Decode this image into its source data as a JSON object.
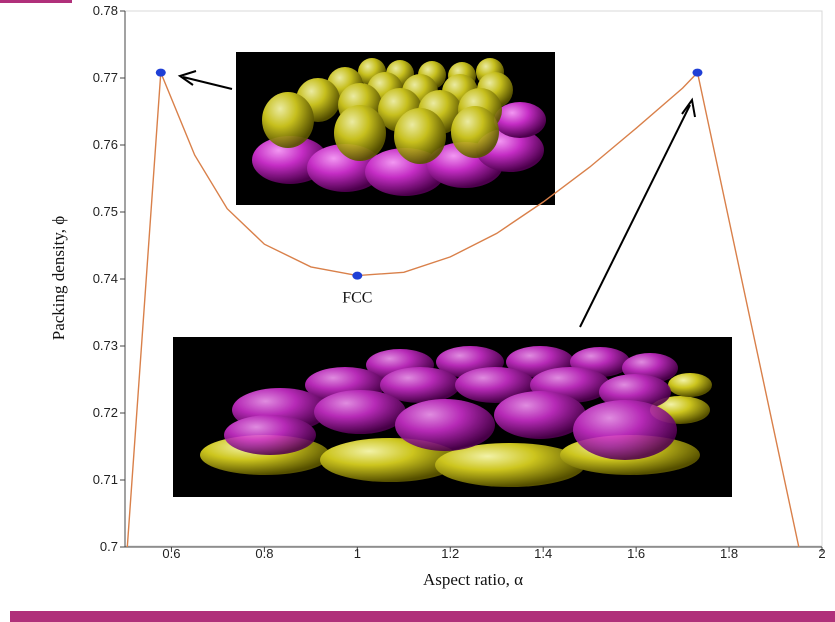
{
  "chart_data": {
    "type": "line",
    "title": "",
    "xlabel": "Aspect ratio, α",
    "ylabel": "Packing density, ϕ",
    "xlim": [
      0.5,
      2.0
    ],
    "ylim": [
      0.7,
      0.78
    ],
    "xticks": [
      "0.6",
      "0.8",
      "1",
      "1.2",
      "1.4",
      "1.6",
      "1.8",
      "2"
    ],
    "yticks": [
      "0.7",
      "0.71",
      "0.72",
      "0.73",
      "0.74",
      "0.75",
      "0.76",
      "0.77",
      "0.78"
    ],
    "grid": false,
    "series": [
      {
        "color": "#d9804a",
        "x": [
          0.505,
          0.577,
          0.65,
          0.72,
          0.8,
          0.9,
          1.0,
          1.1,
          1.2,
          1.3,
          1.4,
          1.5,
          1.6,
          1.7,
          1.732,
          1.95
        ],
        "y": [
          0.7,
          0.7708,
          0.7585,
          0.7505,
          0.7452,
          0.7418,
          0.7405,
          0.741,
          0.7433,
          0.7468,
          0.7515,
          0.7567,
          0.7625,
          0.7685,
          0.7708,
          0.7
        ]
      }
    ],
    "markers": [
      {
        "x": 0.577,
        "y": 0.7708,
        "color": "#1f3fd6"
      },
      {
        "x": 1.0,
        "y": 0.7405,
        "color": "#1f3fd6"
      },
      {
        "x": 1.732,
        "y": 0.7708,
        "color": "#1f3fd6"
      }
    ],
    "annotations": [
      {
        "text": "FCC",
        "x": 1.0,
        "y": 0.7405
      }
    ],
    "insets": [
      {
        "name": "oblate-packing-inset",
        "top_color": "yellow",
        "bottom_color": "magenta"
      },
      {
        "name": "prolate-packing-inset",
        "top_color": "magenta",
        "bottom_color": "yellow"
      }
    ]
  }
}
